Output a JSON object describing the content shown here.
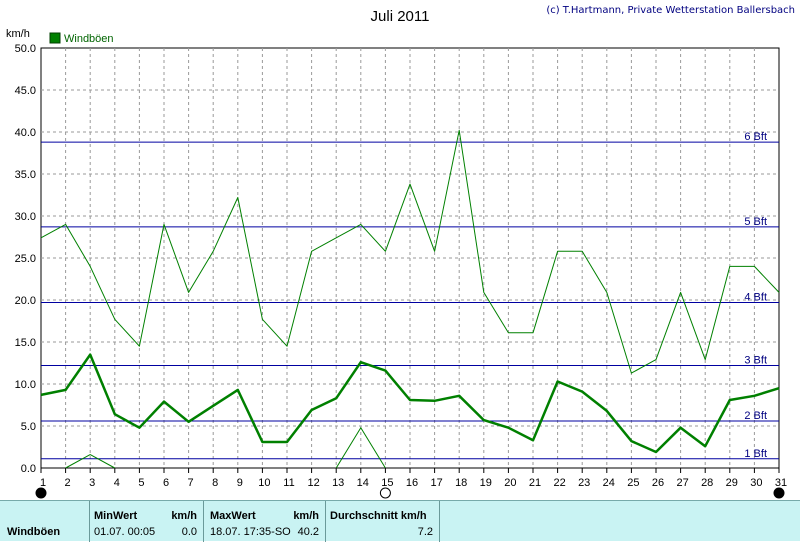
{
  "header": {
    "title": "Juli 2011",
    "credit": "(c) T.Hartmann, Private Wetterstation Ballersbach",
    "unit": "km/h"
  },
  "legend": {
    "label": "Windböen",
    "color": "#008000"
  },
  "colors": {
    "series": "#008000",
    "beaufort": "#0000a0",
    "grid": "#9a9a9a",
    "stats_bg": "#c9f3f3"
  },
  "chart_data": {
    "type": "line",
    "title": "Juli 2011",
    "ylabel": "km/h",
    "xlabel": "",
    "ylim": [
      0,
      50
    ],
    "xlim": [
      1,
      31
    ],
    "grid": true,
    "legend_position": "top-left",
    "yticks": [
      "0.0",
      "5.0",
      "10.0",
      "15.0",
      "20.0",
      "25.0",
      "30.0",
      "35.0",
      "40.0",
      "45.0",
      "50.0"
    ],
    "xticks": [
      "1",
      "2",
      "3",
      "4",
      "5",
      "6",
      "7",
      "8",
      "9",
      "10",
      "11",
      "12",
      "13",
      "14",
      "15",
      "16",
      "17",
      "18",
      "19",
      "20",
      "21",
      "22",
      "23",
      "24",
      "25",
      "26",
      "27",
      "28",
      "29",
      "30",
      "31"
    ],
    "series": [
      {
        "name": "Windböen",
        "thin_max": [
          [
            1,
            27.4
          ],
          [
            2,
            29.0
          ],
          [
            3,
            24.0
          ],
          [
            4,
            17.7
          ],
          [
            5,
            14.5
          ],
          [
            6,
            29.0
          ],
          [
            7,
            20.9
          ],
          [
            8,
            25.8
          ],
          [
            9,
            32.2
          ],
          [
            10,
            17.7
          ],
          [
            11,
            14.5
          ],
          [
            12,
            25.8
          ],
          [
            13,
            27.4
          ],
          [
            14,
            29.0
          ],
          [
            15,
            25.8
          ],
          [
            16,
            33.8
          ],
          [
            17,
            25.8
          ],
          [
            18,
            40.2
          ],
          [
            19,
            20.9
          ],
          [
            20,
            16.1
          ],
          [
            21,
            16.1
          ],
          [
            22,
            25.8
          ],
          [
            23,
            25.8
          ],
          [
            24,
            20.9
          ],
          [
            25,
            11.3
          ],
          [
            26,
            12.9
          ],
          [
            27,
            20.9
          ],
          [
            28,
            12.9
          ],
          [
            29,
            24.0
          ],
          [
            30,
            24.0
          ],
          [
            31,
            20.9
          ]
        ],
        "thick_mean": [
          [
            1,
            8.7
          ],
          [
            2,
            9.3
          ],
          [
            3,
            13.5
          ],
          [
            4,
            6.4
          ],
          [
            5,
            4.8
          ],
          [
            6,
            7.9
          ],
          [
            7,
            5.5
          ],
          [
            8,
            7.4
          ],
          [
            9,
            9.3
          ],
          [
            10,
            3.1
          ],
          [
            11,
            3.1
          ],
          [
            12,
            6.9
          ],
          [
            13,
            8.3
          ],
          [
            14,
            12.6
          ],
          [
            15,
            11.6
          ],
          [
            16,
            8.1
          ],
          [
            17,
            8.0
          ],
          [
            18,
            8.6
          ],
          [
            19,
            5.7
          ],
          [
            20,
            4.8
          ],
          [
            21,
            3.3
          ],
          [
            22,
            10.3
          ],
          [
            23,
            9.1
          ],
          [
            24,
            6.8
          ],
          [
            25,
            3.2
          ],
          [
            26,
            1.9
          ],
          [
            27,
            4.8
          ],
          [
            28,
            2.6
          ],
          [
            29,
            8.1
          ],
          [
            30,
            8.6
          ],
          [
            31,
            9.5
          ]
        ],
        "thin_min": [
          [
            2,
            0.0
          ],
          [
            3,
            1.6
          ],
          [
            4,
            0.0
          ]
        ],
        "thin_min_2": [
          [
            13,
            0.0
          ],
          [
            14,
            4.8
          ],
          [
            15,
            0.0
          ]
        ]
      }
    ],
    "beaufort_lines": [
      {
        "value": 1.1,
        "label": "1 Bft"
      },
      {
        "value": 5.6,
        "label": "2 Bft"
      },
      {
        "value": 12.2,
        "label": "3 Bft"
      },
      {
        "value": 19.7,
        "label": "4 Bft"
      },
      {
        "value": 28.7,
        "label": "5 Bft"
      },
      {
        "value": 38.8,
        "label": "6 Bft"
      }
    ],
    "moon_markers": [
      {
        "day": 1,
        "phase": "new"
      },
      {
        "day": 15,
        "phase": "full"
      },
      {
        "day": 31,
        "phase": "new"
      }
    ]
  },
  "stats": {
    "row_label": "Windböen",
    "min": {
      "label": "MinWert",
      "unit": "km/h",
      "time": "01.07.  00:05",
      "value": "0.0"
    },
    "max": {
      "label": "MaxWert",
      "unit": "km/h",
      "time": "18.07.  17:35-SO",
      "value": "40.2"
    },
    "avg": {
      "label": "Durchschnitt km/h",
      "value": "7.2"
    }
  }
}
